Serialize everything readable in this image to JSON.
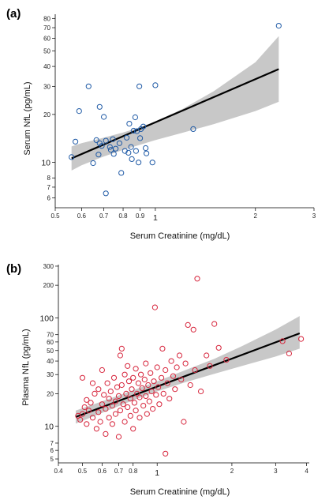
{
  "chart_data": [
    {
      "type": "scatter",
      "panel_label": "(a)",
      "xlabel": "Serum Creatinine (mg/dL)",
      "ylabel": "Serum NfL (pg/mL)",
      "x_scale": "log",
      "y_scale": "log",
      "xlim": [
        0.5,
        3
      ],
      "ylim": [
        5.2,
        85
      ],
      "x_ticks": [
        {
          "v": 0.5,
          "label": "0.5"
        },
        {
          "v": 0.6,
          "label": "0.6"
        },
        {
          "v": 0.7,
          "label": "0.7"
        },
        {
          "v": 0.8,
          "label": "0.8"
        },
        {
          "v": 0.9,
          "label": "0.9"
        },
        {
          "v": 1,
          "label": "1"
        },
        {
          "v": 2,
          "label": "2"
        },
        {
          "v": 3,
          "label": "3"
        }
      ],
      "y_ticks": [
        {
          "v": 6,
          "label": "6"
        },
        {
          "v": 7,
          "label": "7"
        },
        {
          "v": 8,
          "label": "8"
        },
        {
          "v": 10,
          "label": "10"
        },
        {
          "v": 20,
          "label": "20"
        },
        {
          "v": 30,
          "label": "30"
        },
        {
          "v": 40,
          "label": "40"
        },
        {
          "v": 50,
          "label": "50"
        },
        {
          "v": 60,
          "label": "60"
        },
        {
          "v": 70,
          "label": "70"
        },
        {
          "v": 80,
          "label": "80"
        }
      ],
      "y_big_ticks": [
        10
      ],
      "grid": false,
      "point_color": "#1f5aa6",
      "fit_color": "#000000",
      "band_color": "#c8c8c8",
      "fit_line": {
        "x": [
          0.56,
          2.35
        ],
        "y": [
          10.6,
          38.5
        ]
      },
      "ci_band": {
        "x": [
          0.56,
          0.6,
          0.7,
          0.8,
          0.9,
          1.0,
          1.2,
          1.5,
          2.0,
          2.35
        ],
        "upper": [
          12.6,
          13.2,
          14.3,
          15.4,
          16.6,
          18.1,
          21.5,
          28.0,
          42.5,
          62.0
        ],
        "lower": [
          8.9,
          9.6,
          10.9,
          12.0,
          12.9,
          13.8,
          15.3,
          17.4,
          21.0,
          24.0
        ]
      },
      "points": [
        {
          "x": 0.56,
          "y": 10.8
        },
        {
          "x": 0.575,
          "y": 13.5
        },
        {
          "x": 0.59,
          "y": 21.0
        },
        {
          "x": 0.63,
          "y": 30.0
        },
        {
          "x": 0.65,
          "y": 9.9
        },
        {
          "x": 0.665,
          "y": 13.8
        },
        {
          "x": 0.675,
          "y": 11.2
        },
        {
          "x": 0.68,
          "y": 13.2
        },
        {
          "x": 0.68,
          "y": 22.3
        },
        {
          "x": 0.69,
          "y": 12.7
        },
        {
          "x": 0.7,
          "y": 19.3
        },
        {
          "x": 0.71,
          "y": 13.7
        },
        {
          "x": 0.71,
          "y": 6.4
        },
        {
          "x": 0.73,
          "y": 12.5
        },
        {
          "x": 0.735,
          "y": 12.0
        },
        {
          "x": 0.745,
          "y": 14.0
        },
        {
          "x": 0.75,
          "y": 11.3
        },
        {
          "x": 0.76,
          "y": 12.2
        },
        {
          "x": 0.78,
          "y": 13.2
        },
        {
          "x": 0.79,
          "y": 8.6
        },
        {
          "x": 0.81,
          "y": 11.8
        },
        {
          "x": 0.82,
          "y": 14.3
        },
        {
          "x": 0.83,
          "y": 11.5
        },
        {
          "x": 0.835,
          "y": 17.5
        },
        {
          "x": 0.845,
          "y": 12.5
        },
        {
          "x": 0.85,
          "y": 10.5
        },
        {
          "x": 0.86,
          "y": 15.8
        },
        {
          "x": 0.87,
          "y": 19.2
        },
        {
          "x": 0.875,
          "y": 11.8
        },
        {
          "x": 0.88,
          "y": 15.7
        },
        {
          "x": 0.89,
          "y": 10.0
        },
        {
          "x": 0.895,
          "y": 30.0
        },
        {
          "x": 0.9,
          "y": 14.2
        },
        {
          "x": 0.905,
          "y": 16.2
        },
        {
          "x": 0.92,
          "y": 16.8
        },
        {
          "x": 0.935,
          "y": 12.3
        },
        {
          "x": 0.94,
          "y": 11.4
        },
        {
          "x": 0.98,
          "y": 10.0
        },
        {
          "x": 1.0,
          "y": 30.5
        },
        {
          "x": 1.3,
          "y": 16.2
        },
        {
          "x": 2.35,
          "y": 72.0
        }
      ]
    },
    {
      "type": "scatter",
      "panel_label": "(b)",
      "xlabel": "Serum Creatinine (mg/dL)",
      "ylabel": "Plasma NfL (pg/mL)",
      "x_scale": "log",
      "y_scale": "log",
      "xlim": [
        0.4,
        4.1
      ],
      "ylim": [
        4.6,
        310
      ],
      "x_ticks": [
        {
          "v": 0.4,
          "label": "0.4"
        },
        {
          "v": 0.5,
          "label": "0.5"
        },
        {
          "v": 0.6,
          "label": "0.6"
        },
        {
          "v": 0.7,
          "label": "0.7"
        },
        {
          "v": 0.8,
          "label": "0.8"
        },
        {
          "v": 1,
          "label": "1"
        },
        {
          "v": 2,
          "label": "2"
        },
        {
          "v": 3,
          "label": "3"
        },
        {
          "v": 4,
          "label": "4"
        }
      ],
      "y_ticks": [
        {
          "v": 5,
          "label": "5"
        },
        {
          "v": 6,
          "label": "6"
        },
        {
          "v": 7,
          "label": "7"
        },
        {
          "v": 10,
          "label": "10"
        },
        {
          "v": 20,
          "label": "20"
        },
        {
          "v": 30,
          "label": "30"
        },
        {
          "v": 40,
          "label": "40"
        },
        {
          "v": 50,
          "label": "50"
        },
        {
          "v": 60,
          "label": "60"
        },
        {
          "v": 70,
          "label": "70"
        },
        {
          "v": 100,
          "label": "100"
        },
        {
          "v": 200,
          "label": "200"
        },
        {
          "v": 300,
          "label": "300"
        }
      ],
      "y_big_ticks": [
        10,
        100
      ],
      "grid": false,
      "point_color": "#d7263d",
      "fit_color": "#000000",
      "band_color": "#c8c8c8",
      "fit_line": {
        "x": [
          0.47,
          3.75
        ],
        "y": [
          12.2,
          72.0
        ]
      },
      "ci_band": {
        "x": [
          0.47,
          0.6,
          0.8,
          1.0,
          1.3,
          1.7,
          2.2,
          3.0,
          3.75
        ],
        "upper": [
          14.0,
          17.0,
          21.5,
          26.0,
          33.0,
          42.0,
          55.0,
          78.0,
          104.0
        ],
        "lower": [
          10.6,
          13.3,
          17.4,
          21.0,
          25.5,
          30.5,
          36.0,
          44.0,
          52.0
        ]
      },
      "points": [
        {
          "x": 0.48,
          "y": 12.5
        },
        {
          "x": 0.49,
          "y": 11.5
        },
        {
          "x": 0.5,
          "y": 13.0
        },
        {
          "x": 0.5,
          "y": 28.0
        },
        {
          "x": 0.51,
          "y": 15.0
        },
        {
          "x": 0.52,
          "y": 10.5
        },
        {
          "x": 0.52,
          "y": 17.5
        },
        {
          "x": 0.53,
          "y": 14.0
        },
        {
          "x": 0.54,
          "y": 16.5
        },
        {
          "x": 0.55,
          "y": 12.0
        },
        {
          "x": 0.55,
          "y": 25.0
        },
        {
          "x": 0.56,
          "y": 20.0
        },
        {
          "x": 0.57,
          "y": 9.5
        },
        {
          "x": 0.58,
          "y": 13.5
        },
        {
          "x": 0.58,
          "y": 22.0
        },
        {
          "x": 0.59,
          "y": 11.0
        },
        {
          "x": 0.6,
          "y": 16.0
        },
        {
          "x": 0.6,
          "y": 33.0
        },
        {
          "x": 0.61,
          "y": 19.5
        },
        {
          "x": 0.62,
          "y": 14.5
        },
        {
          "x": 0.62,
          "y": 8.5
        },
        {
          "x": 0.63,
          "y": 25.0
        },
        {
          "x": 0.64,
          "y": 12.0
        },
        {
          "x": 0.64,
          "y": 18.0
        },
        {
          "x": 0.65,
          "y": 21.0
        },
        {
          "x": 0.66,
          "y": 15.5
        },
        {
          "x": 0.66,
          "y": 10.5
        },
        {
          "x": 0.67,
          "y": 28.0
        },
        {
          "x": 0.68,
          "y": 17.0
        },
        {
          "x": 0.68,
          "y": 13.0
        },
        {
          "x": 0.69,
          "y": 23.0
        },
        {
          "x": 0.7,
          "y": 8.0
        },
        {
          "x": 0.7,
          "y": 19.0
        },
        {
          "x": 0.71,
          "y": 45.0
        },
        {
          "x": 0.71,
          "y": 14.0
        },
        {
          "x": 0.72,
          "y": 52.0
        },
        {
          "x": 0.72,
          "y": 24.0
        },
        {
          "x": 0.73,
          "y": 16.0
        },
        {
          "x": 0.74,
          "y": 11.0
        },
        {
          "x": 0.74,
          "y": 30.0
        },
        {
          "x": 0.75,
          "y": 20.0
        },
        {
          "x": 0.76,
          "y": 36.0
        },
        {
          "x": 0.76,
          "y": 15.0
        },
        {
          "x": 0.77,
          "y": 26.0
        },
        {
          "x": 0.78,
          "y": 12.5
        },
        {
          "x": 0.78,
          "y": 18.0
        },
        {
          "x": 0.79,
          "y": 22.0
        },
        {
          "x": 0.8,
          "y": 9.5
        },
        {
          "x": 0.8,
          "y": 28.0
        },
        {
          "x": 0.81,
          "y": 16.5
        },
        {
          "x": 0.82,
          "y": 14.0
        },
        {
          "x": 0.82,
          "y": 34.0
        },
        {
          "x": 0.83,
          "y": 20.0
        },
        {
          "x": 0.84,
          "y": 25.0
        },
        {
          "x": 0.85,
          "y": 12.0
        },
        {
          "x": 0.85,
          "y": 18.5
        },
        {
          "x": 0.86,
          "y": 30.0
        },
        {
          "x": 0.87,
          "y": 22.5
        },
        {
          "x": 0.88,
          "y": 15.5
        },
        {
          "x": 0.89,
          "y": 27.0
        },
        {
          "x": 0.9,
          "y": 19.0
        },
        {
          "x": 0.9,
          "y": 38.0
        },
        {
          "x": 0.91,
          "y": 13.0
        },
        {
          "x": 0.92,
          "y": 24.0
        },
        {
          "x": 0.93,
          "y": 17.0
        },
        {
          "x": 0.94,
          "y": 31.0
        },
        {
          "x": 0.95,
          "y": 21.0
        },
        {
          "x": 0.96,
          "y": 14.5
        },
        {
          "x": 0.97,
          "y": 26.0
        },
        {
          "x": 0.98,
          "y": 125.0
        },
        {
          "x": 0.99,
          "y": 19.5
        },
        {
          "x": 1.0,
          "y": 35.0
        },
        {
          "x": 1.01,
          "y": 23.0
        },
        {
          "x": 1.02,
          "y": 16.0
        },
        {
          "x": 1.04,
          "y": 28.0
        },
        {
          "x": 1.05,
          "y": 52.0
        },
        {
          "x": 1.06,
          "y": 20.0
        },
        {
          "x": 1.08,
          "y": 5.6
        },
        {
          "x": 1.08,
          "y": 33.0
        },
        {
          "x": 1.1,
          "y": 25.0
        },
        {
          "x": 1.12,
          "y": 18.0
        },
        {
          "x": 1.14,
          "y": 40.0
        },
        {
          "x": 1.16,
          "y": 29.0
        },
        {
          "x": 1.18,
          "y": 22.0
        },
        {
          "x": 1.2,
          "y": 35.0
        },
        {
          "x": 1.23,
          "y": 45.0
        },
        {
          "x": 1.25,
          "y": 27.0
        },
        {
          "x": 1.28,
          "y": 11.0
        },
        {
          "x": 1.3,
          "y": 38.0
        },
        {
          "x": 1.33,
          "y": 86.0
        },
        {
          "x": 1.36,
          "y": 24.0
        },
        {
          "x": 1.4,
          "y": 78.0
        },
        {
          "x": 1.42,
          "y": 33.0
        },
        {
          "x": 1.45,
          "y": 230.0
        },
        {
          "x": 1.5,
          "y": 21.0
        },
        {
          "x": 1.58,
          "y": 45.0
        },
        {
          "x": 1.63,
          "y": 36.0
        },
        {
          "x": 1.7,
          "y": 88.0
        },
        {
          "x": 1.77,
          "y": 53.0
        },
        {
          "x": 1.9,
          "y": 41.0
        },
        {
          "x": 3.2,
          "y": 61.0
        },
        {
          "x": 3.4,
          "y": 47.0
        },
        {
          "x": 3.8,
          "y": 64.0
        }
      ]
    }
  ]
}
